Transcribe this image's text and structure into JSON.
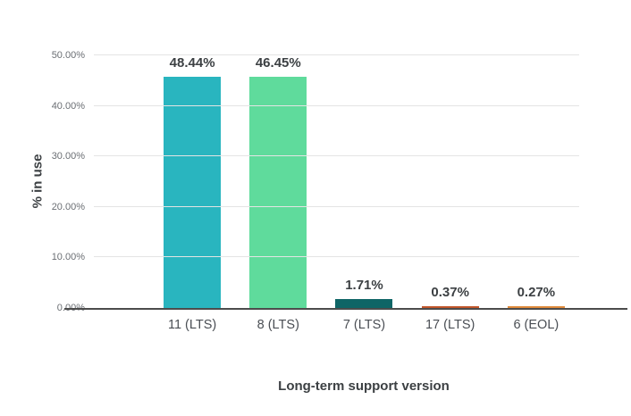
{
  "chart_data": {
    "type": "bar",
    "title": "",
    "xlabel": "Long-term support version",
    "ylabel": "% in use",
    "categories": [
      "11 (LTS)",
      "8 (LTS)",
      "7 (LTS)",
      "17 (LTS)",
      "6 (EOL)"
    ],
    "values": [
      48.44,
      46.45,
      1.71,
      0.37,
      0.27
    ],
    "value_labels": [
      "48.44%",
      "46.45%",
      "1.71%",
      "0.37%",
      "0.27%"
    ],
    "bar_colors": [
      "#29b5bf",
      "#5fdb9c",
      "#0e6566",
      "#c1562b",
      "#e08a3c"
    ],
    "ylim": [
      0,
      50
    ],
    "yticks": {
      "values": [
        0,
        10,
        20,
        30,
        40,
        50
      ],
      "labels": [
        "0.00%",
        "10.00%",
        "20.00%",
        "30.00%",
        "40.00%",
        "50.00%"
      ]
    },
    "grid": true,
    "legend": false,
    "colors": {
      "gridline": "#e4e4e4",
      "axis_line": "#4c4c4c",
      "tick_text": "#6b6f74",
      "label_text": "#3c4043"
    }
  }
}
